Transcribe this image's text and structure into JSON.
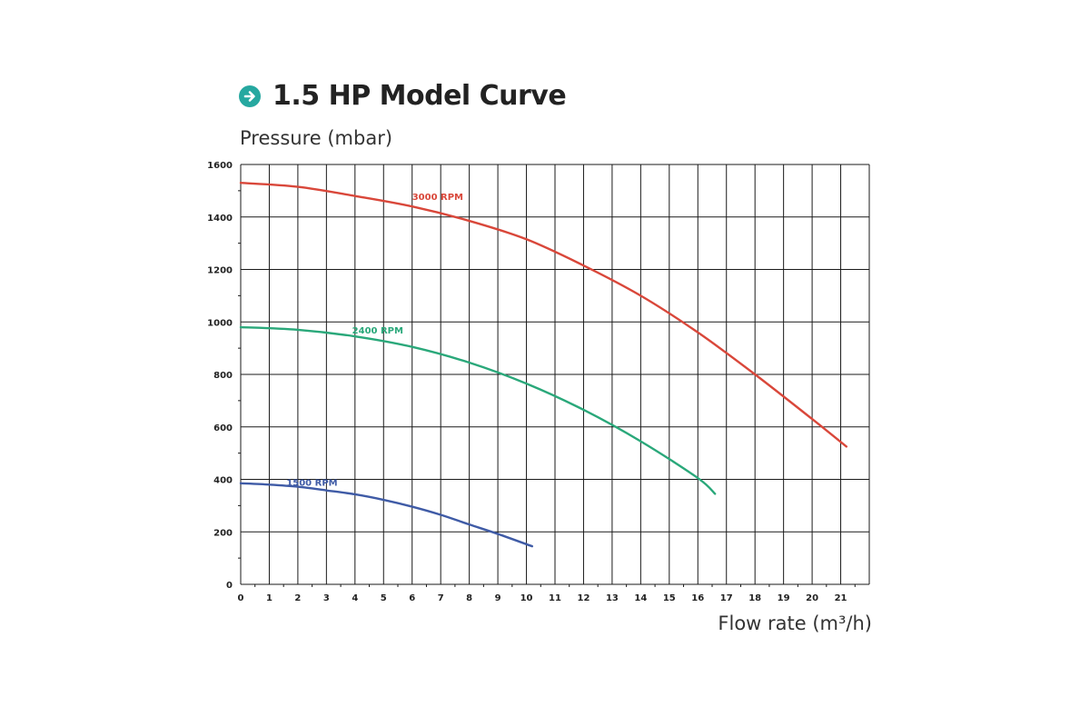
{
  "chart_data": {
    "type": "line",
    "title": "1.5 HP Model Curve",
    "ylabel": "Pressure (mbar)",
    "xlabel": "Flow rate (m³/h)",
    "xlim": [
      0,
      22
    ],
    "ylim": [
      0,
      1600
    ],
    "x_ticks": [
      0,
      1,
      2,
      3,
      4,
      5,
      6,
      7,
      8,
      9,
      10,
      11,
      12,
      13,
      14,
      15,
      16,
      17,
      18,
      19,
      20,
      21
    ],
    "y_ticks": [
      0,
      200,
      400,
      600,
      800,
      1000,
      1200,
      1400,
      1600
    ],
    "grid": true,
    "series": [
      {
        "name": "3000 RPM",
        "color": "#d9473a",
        "x": [
          0,
          2,
          4,
          6,
          8,
          10,
          12,
          14,
          16,
          18,
          20,
          21.2
        ],
        "y": [
          1530,
          1515,
          1480,
          1440,
          1385,
          1315,
          1215,
          1100,
          960,
          800,
          630,
          525
        ]
      },
      {
        "name": "2400 RPM",
        "color": "#2aa87a",
        "x": [
          0,
          2,
          4,
          6,
          8,
          10,
          12,
          14,
          16,
          16.6
        ],
        "y": [
          980,
          970,
          945,
          905,
          845,
          765,
          665,
          545,
          405,
          345
        ]
      },
      {
        "name": "1500 RPM",
        "color": "#3f5ba6",
        "x": [
          0,
          1,
          2,
          3,
          4,
          5,
          6,
          7,
          8,
          9,
          10.2
        ],
        "y": [
          385,
          380,
          372,
          358,
          343,
          322,
          296,
          265,
          228,
          192,
          145
        ]
      }
    ]
  }
}
